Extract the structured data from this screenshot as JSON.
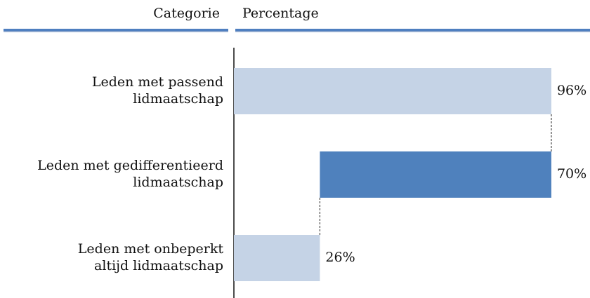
{
  "chart_data": {
    "type": "waterfall",
    "category_header": "Categorie",
    "value_header": "Percentage",
    "categories": [
      [
        "Leden met passend",
        "lidmaatschap"
      ],
      [
        "Leden met gedifferentieerd",
        "lidmaatschap"
      ],
      [
        "Leden met onbeperkt",
        "altijd lidmaatschap"
      ]
    ],
    "values": [
      96,
      70,
      26
    ],
    "value_labels": [
      "96%",
      "70%",
      "26%"
    ],
    "measures": [
      "total",
      "decrease",
      "total"
    ],
    "colors": [
      "#c5d3e6",
      "#4f81bd",
      "#c5d3e6"
    ],
    "xlim": [
      0,
      100
    ]
  }
}
